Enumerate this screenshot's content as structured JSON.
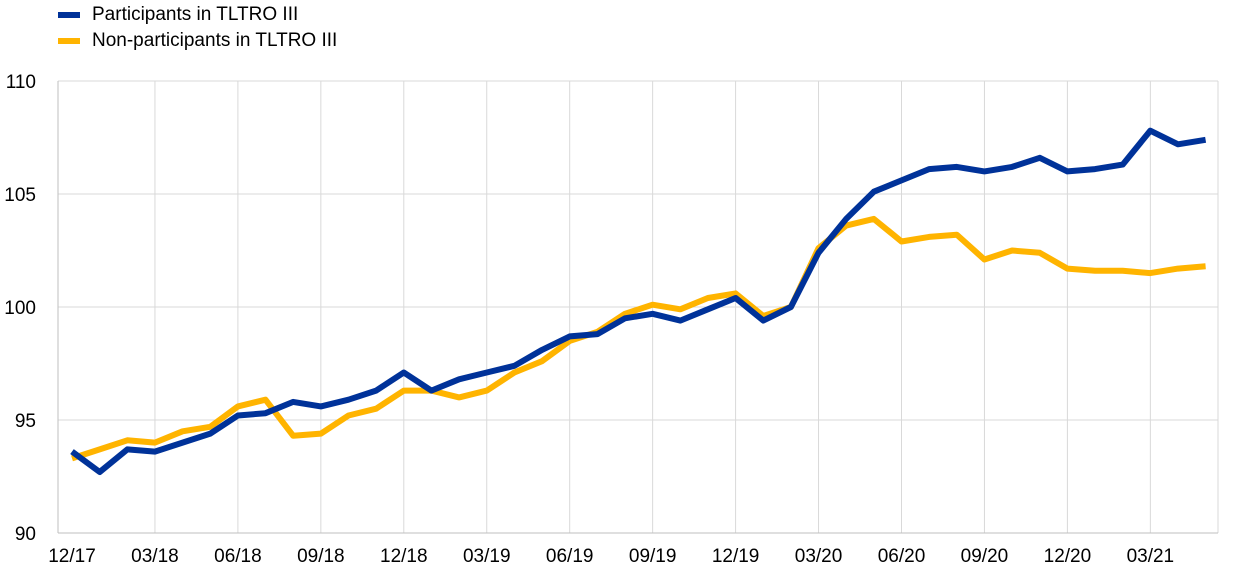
{
  "chart_data": {
    "type": "line",
    "title": "",
    "xlabel": "",
    "ylabel": "",
    "ylim": [
      90,
      110
    ],
    "yticks": [
      90,
      95,
      100,
      105,
      110
    ],
    "grid": true,
    "legend_position": "top-left",
    "x": [
      "12/17",
      "01/18",
      "02/18",
      "03/18",
      "04/18",
      "05/18",
      "06/18",
      "07/18",
      "08/18",
      "09/18",
      "10/18",
      "11/18",
      "12/18",
      "01/19",
      "02/19",
      "03/19",
      "04/19",
      "05/19",
      "06/19",
      "07/19",
      "08/19",
      "09/19",
      "10/19",
      "11/19",
      "12/19",
      "01/20",
      "02/20",
      "03/20",
      "04/20",
      "05/20",
      "06/20",
      "07/20",
      "08/20",
      "09/20",
      "10/20",
      "11/20",
      "12/20",
      "01/21",
      "02/21",
      "03/21",
      "04/21",
      "05/21"
    ],
    "xtick_labels": [
      "12/17",
      "03/18",
      "06/18",
      "09/18",
      "12/18",
      "03/19",
      "06/19",
      "09/19",
      "12/19",
      "03/20",
      "06/20",
      "09/20",
      "12/20",
      "03/21"
    ],
    "series": [
      {
        "name": "Participants in TLTRO III",
        "color": "#003299",
        "values": [
          93.6,
          92.7,
          93.7,
          93.6,
          94.0,
          94.4,
          95.2,
          95.3,
          95.8,
          95.6,
          95.9,
          96.3,
          97.1,
          96.3,
          96.8,
          97.1,
          97.4,
          98.1,
          98.7,
          98.8,
          99.5,
          99.7,
          99.4,
          99.9,
          100.4,
          99.4,
          100.0,
          102.4,
          103.9,
          105.1,
          105.6,
          106.1,
          106.2,
          106.0,
          106.2,
          106.6,
          106.0,
          106.1,
          106.3,
          107.8,
          107.2,
          107.4
        ]
      },
      {
        "name": "Non-participants in TLTRO III",
        "color": "#FFB400",
        "values": [
          93.3,
          93.7,
          94.1,
          94.0,
          94.5,
          94.7,
          95.6,
          95.9,
          94.3,
          94.4,
          95.2,
          95.5,
          96.3,
          96.3,
          96.0,
          96.3,
          97.1,
          97.6,
          98.5,
          98.9,
          99.7,
          100.1,
          99.9,
          100.4,
          100.6,
          99.6,
          100.0,
          102.6,
          103.6,
          103.9,
          102.9,
          103.1,
          103.2,
          102.1,
          102.5,
          102.4,
          101.7,
          101.6,
          101.6,
          101.5,
          101.7,
          101.8
        ]
      }
    ]
  }
}
